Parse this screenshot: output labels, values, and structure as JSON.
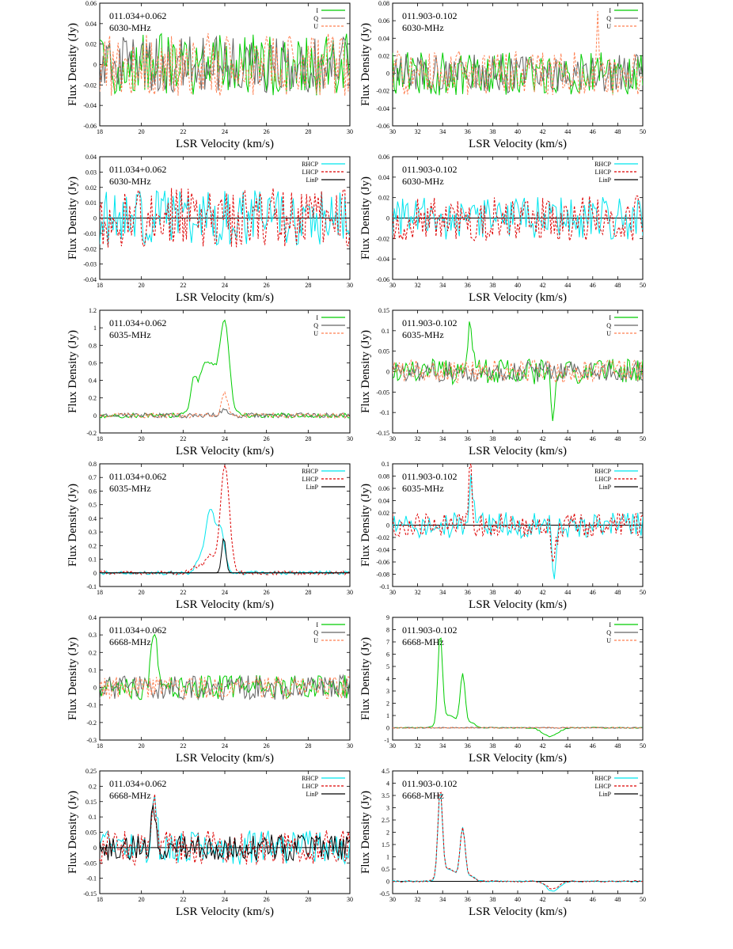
{
  "figure": {
    "layout": "6 rows x 2 columns grid of spectra panels"
  },
  "colors": {
    "I": "#00cc00",
    "Q": "#666666",
    "U": "#ff7f50",
    "RHCP": "#00e5ee",
    "LHCP": "#dd0000",
    "LinP": "#000000",
    "zero_line": "#000000"
  },
  "chart_data": [
    {
      "type": "line",
      "source": "011.034+0.062",
      "freq": "6030-MHz",
      "legend": [
        "I",
        "Q",
        "U"
      ],
      "xlabel": "LSR Velocity (km/s)",
      "ylabel": "Flux Density (Jy)",
      "xlim": [
        18,
        30
      ],
      "xticks": [
        18,
        20,
        22,
        24,
        26,
        28,
        30
      ],
      "ylim": [
        -0.06,
        0.06
      ],
      "yticks": [
        -0.06,
        -0.04,
        -0.02,
        0,
        0.02,
        0.04,
        0.06
      ],
      "grid": false,
      "legend_position": "top-right",
      "series": [
        {
          "name": "I",
          "noise": 0.022,
          "peaks": []
        },
        {
          "name": "Q",
          "noise": 0.02,
          "peaks": []
        },
        {
          "name": "U",
          "noise": 0.022,
          "peaks": []
        }
      ]
    },
    {
      "type": "line",
      "source": "011.903-0.102",
      "freq": "6030-MHz",
      "legend": [
        "I",
        "Q",
        "U"
      ],
      "xlabel": "LSR Velocity (km/s)",
      "ylabel": "Flux Density (Jy)",
      "xlim": [
        30,
        50
      ],
      "xticks": [
        30,
        32,
        34,
        36,
        38,
        40,
        42,
        44,
        46,
        48,
        50
      ],
      "ylim": [
        -0.06,
        0.08
      ],
      "yticks": [
        -0.06,
        -0.04,
        -0.02,
        0,
        0.02,
        0.04,
        0.06,
        0.08
      ],
      "grid": false,
      "legend_position": "top-right",
      "series": [
        {
          "name": "I",
          "noise": 0.018,
          "peaks": []
        },
        {
          "name": "Q",
          "noise": 0.016,
          "peaks": []
        },
        {
          "name": "U",
          "noise": 0.018,
          "peaks": [
            [
              46.4,
              0.05,
              0.08
            ]
          ]
        }
      ]
    },
    {
      "type": "line",
      "source": "011.034+0.062",
      "freq": "6030-MHz",
      "legend": [
        "RHCP",
        "LHCP",
        "LinP"
      ],
      "xlabel": "LSR Velocity (km/s)",
      "ylabel": "Flux Density (Jy)",
      "xlim": [
        18,
        30
      ],
      "xticks": [
        18,
        20,
        22,
        24,
        26,
        28,
        30
      ],
      "ylim": [
        -0.04,
        0.04
      ],
      "yticks": [
        -0.04,
        -0.03,
        -0.02,
        -0.01,
        0,
        0.01,
        0.02,
        0.03,
        0.04
      ],
      "grid": false,
      "legend_position": "top-right",
      "series": [
        {
          "name": "RHCP",
          "noise": 0.013,
          "peaks": []
        },
        {
          "name": "LHCP",
          "noise": 0.014,
          "peaks": []
        },
        {
          "name": "LinP",
          "noise": 0,
          "peaks": []
        }
      ]
    },
    {
      "type": "line",
      "source": "011.903-0.102",
      "freq": "6030-MHz",
      "legend": [
        "RHCP",
        "LHCP",
        "LinP"
      ],
      "xlabel": "LSR Velocity (km/s)",
      "ylabel": "Flux Density (Jy)",
      "xlim": [
        30,
        50
      ],
      "xticks": [
        30,
        32,
        34,
        36,
        38,
        40,
        42,
        44,
        46,
        48,
        50
      ],
      "ylim": [
        -0.06,
        0.06
      ],
      "yticks": [
        -0.06,
        -0.04,
        -0.02,
        0,
        0.02,
        0.04,
        0.06
      ],
      "grid": false,
      "legend_position": "top-right",
      "series": [
        {
          "name": "RHCP",
          "noise": 0.015,
          "peaks": []
        },
        {
          "name": "LHCP",
          "noise": 0.016,
          "peaks": []
        },
        {
          "name": "LinP",
          "noise": 0,
          "peaks": []
        }
      ]
    },
    {
      "type": "line",
      "source": "011.034+0.062",
      "freq": "6035-MHz",
      "legend": [
        "I",
        "Q",
        "U"
      ],
      "xlabel": "LSR Velocity (km/s)",
      "ylabel": "Flux Density (Jy)",
      "xlim": [
        18,
        30
      ],
      "xticks": [
        18,
        20,
        22,
        24,
        26,
        28,
        30
      ],
      "ylim": [
        -0.2,
        1.2
      ],
      "yticks": [
        -0.2,
        0,
        0.2,
        0.4,
        0.6,
        0.8,
        1,
        1.2
      ],
      "grid": false,
      "legend_position": "top-right",
      "series": [
        {
          "name": "I",
          "noise": 0.02,
          "peaks": [
            [
              22.5,
              0.25,
              0.12
            ],
            [
              23.2,
              0.62,
              0.45
            ],
            [
              24.0,
              0.95,
              0.22
            ]
          ]
        },
        {
          "name": "Q",
          "noise": 0.02,
          "peaks": [
            [
              24.0,
              0.08,
              0.15
            ]
          ]
        },
        {
          "name": "U",
          "noise": 0.02,
          "peaks": [
            [
              24.0,
              0.25,
              0.15
            ]
          ]
        }
      ]
    },
    {
      "type": "line",
      "source": "011.903-0.102",
      "freq": "6035-MHz",
      "legend": [
        "I",
        "Q",
        "U"
      ],
      "xlabel": "LSR Velocity (km/s)",
      "ylabel": "Flux Density (Jy)",
      "xlim": [
        30,
        50
      ],
      "xticks": [
        30,
        32,
        34,
        36,
        38,
        40,
        42,
        44,
        46,
        48,
        50
      ],
      "ylim": [
        -0.15,
        0.15
      ],
      "yticks": [
        -0.15,
        -0.1,
        -0.05,
        0,
        0.05,
        0.1,
        0.15
      ],
      "grid": false,
      "legend_position": "top-right",
      "series": [
        {
          "name": "I",
          "noise": 0.022,
          "peaks": [
            [
              36.2,
              0.1,
              0.2
            ],
            [
              42.8,
              -0.12,
              0.15
            ]
          ]
        },
        {
          "name": "Q",
          "noise": 0.018,
          "peaks": []
        },
        {
          "name": "U",
          "noise": 0.02,
          "peaks": []
        }
      ]
    },
    {
      "type": "line",
      "source": "011.034+0.062",
      "freq": "6035-MHz",
      "legend": [
        "RHCP",
        "LHCP",
        "LinP"
      ],
      "xlabel": "LSR Velocity (km/s)",
      "ylabel": "Flux Density (Jy)",
      "xlim": [
        18,
        30
      ],
      "xticks": [
        18,
        20,
        22,
        24,
        26,
        28,
        30
      ],
      "ylim": [
        -0.1,
        0.8
      ],
      "yticks": [
        -0.1,
        0,
        0.1,
        0.2,
        0.3,
        0.4,
        0.5,
        0.6,
        0.7,
        0.8
      ],
      "grid": false,
      "legend_position": "top-right",
      "series": [
        {
          "name": "RHCP",
          "noise": 0.01,
          "peaks": [
            [
              22.8,
              0.1,
              0.2
            ],
            [
              23.3,
              0.45,
              0.22
            ],
            [
              23.8,
              0.3,
              0.2
            ]
          ]
        },
        {
          "name": "LHCP",
          "noise": 0.01,
          "peaks": [
            [
              22.7,
              0.05,
              0.3
            ],
            [
              23.3,
              0.12,
              0.2
            ],
            [
              24.0,
              0.78,
              0.22
            ]
          ]
        },
        {
          "name": "LinP",
          "noise": 0,
          "peaks": [
            [
              23.95,
              0.26,
              0.1
            ]
          ]
        }
      ]
    },
    {
      "type": "line",
      "source": "011.903-0.102",
      "freq": "6035-MHz",
      "legend": [
        "RHCP",
        "LHCP",
        "LinP"
      ],
      "xlabel": "LSR Velocity (km/s)",
      "ylabel": "Flux Density (Jy)",
      "xlim": [
        30,
        50
      ],
      "xticks": [
        30,
        32,
        34,
        36,
        38,
        40,
        42,
        44,
        46,
        48,
        50
      ],
      "ylim": [
        -0.1,
        0.1
      ],
      "yticks": [
        -0.1,
        -0.08,
        -0.06,
        -0.04,
        -0.02,
        0,
        0.02,
        0.04,
        0.06,
        0.08,
        0.1
      ],
      "grid": false,
      "legend_position": "top-right",
      "series": [
        {
          "name": "RHCP",
          "noise": 0.015,
          "peaks": [
            [
              36.3,
              0.08,
              0.15
            ],
            [
              42.9,
              -0.07,
              0.15
            ]
          ]
        },
        {
          "name": "LHCP",
          "noise": 0.014,
          "peaks": [
            [
              36.2,
              0.09,
              0.15
            ],
            [
              42.9,
              -0.05,
              0.2
            ]
          ]
        },
        {
          "name": "LinP",
          "noise": 0,
          "peaks": []
        }
      ]
    },
    {
      "type": "line",
      "source": "011.034+0.062",
      "freq": "6668-MHz",
      "legend": [
        "I",
        "Q",
        "U"
      ],
      "xlabel": "LSR Velocity (km/s)",
      "ylabel": "Flux Density (Jy)",
      "xlim": [
        18,
        30
      ],
      "xticks": [
        18,
        20,
        22,
        24,
        26,
        28,
        30
      ],
      "ylim": [
        -0.3,
        0.4
      ],
      "yticks": [
        -0.3,
        -0.2,
        -0.1,
        0,
        0.1,
        0.2,
        0.3,
        0.4
      ],
      "grid": false,
      "legend_position": "top-right",
      "series": [
        {
          "name": "I",
          "noise": 0.05,
          "peaks": [
            [
              20.6,
              0.32,
              0.15
            ]
          ]
        },
        {
          "name": "Q",
          "noise": 0.05,
          "peaks": []
        },
        {
          "name": "U",
          "noise": 0.045,
          "peaks": []
        }
      ]
    },
    {
      "type": "line",
      "source": "011.903-0.102",
      "freq": "6668-MHz",
      "legend": [
        "I",
        "Q",
        "U"
      ],
      "xlabel": "LSR Velocity (km/s)",
      "ylabel": "Flux Density (Jy)",
      "xlim": [
        30,
        50
      ],
      "xticks": [
        30,
        32,
        34,
        36,
        38,
        40,
        42,
        44,
        46,
        48,
        50
      ],
      "ylim": [
        -1,
        9
      ],
      "yticks": [
        -1,
        0,
        1,
        2,
        3,
        4,
        5,
        6,
        7,
        8,
        9
      ],
      "grid": false,
      "legend_position": "top-right",
      "series": [
        {
          "name": "I",
          "noise": 0.03,
          "peaks": [
            [
              33.8,
              7.2,
              0.18
            ],
            [
              34.5,
              1.0,
              0.6
            ],
            [
              35.6,
              4.2,
              0.2
            ],
            [
              36.3,
              0.4,
              0.3
            ],
            [
              42.6,
              -0.7,
              0.6
            ]
          ]
        },
        {
          "name": "Q",
          "noise": 0.03,
          "peaks": []
        },
        {
          "name": "U",
          "noise": 0.03,
          "peaks": []
        }
      ]
    },
    {
      "type": "line",
      "source": "011.034+0.062",
      "freq": "6668-MHz",
      "legend": [
        "RHCP",
        "LHCP",
        "LinP"
      ],
      "xlabel": "LSR Velocity (km/s)",
      "ylabel": "Flux Density (Jy)",
      "xlim": [
        18,
        30
      ],
      "xticks": [
        18,
        20,
        22,
        24,
        26,
        28,
        30
      ],
      "ylim": [
        -0.15,
        0.25
      ],
      "yticks": [
        -0.15,
        -0.1,
        -0.05,
        0,
        0.05,
        0.1,
        0.15,
        0.2,
        0.25
      ],
      "grid": false,
      "legend_position": "top-right",
      "series": [
        {
          "name": "RHCP",
          "noise": 0.04,
          "peaks": [
            [
              20.6,
              0.18,
              0.12
            ]
          ]
        },
        {
          "name": "LHCP",
          "noise": 0.04,
          "peaks": [
            [
              20.6,
              0.2,
              0.12
            ]
          ]
        },
        {
          "name": "LinP",
          "noise": 0.03,
          "peaks": [
            [
              20.6,
              0.12,
              0.12
            ]
          ]
        }
      ]
    },
    {
      "type": "line",
      "source": "011.903-0.102",
      "freq": "6668-MHz",
      "legend": [
        "RHCP",
        "LHCP",
        "LinP"
      ],
      "xlabel": "LSR Velocity (km/s)",
      "ylabel": "Flux Density (Jy)",
      "xlim": [
        30,
        50
      ],
      "xticks": [
        30,
        32,
        34,
        36,
        38,
        40,
        42,
        44,
        46,
        48,
        50
      ],
      "ylim": [
        -0.5,
        4.5
      ],
      "yticks": [
        -0.5,
        0,
        0.5,
        1,
        1.5,
        2,
        2.5,
        3,
        3.5,
        4,
        4.5
      ],
      "grid": false,
      "legend_position": "top-right",
      "series": [
        {
          "name": "RHCP",
          "noise": 0.02,
          "peaks": [
            [
              33.8,
              3.5,
              0.18
            ],
            [
              34.5,
              0.5,
              0.6
            ],
            [
              35.6,
              2.1,
              0.2
            ],
            [
              36.3,
              0.2,
              0.3
            ],
            [
              42.8,
              -0.4,
              0.5
            ]
          ]
        },
        {
          "name": "LHCP",
          "noise": 0.02,
          "peaks": [
            [
              33.8,
              3.6,
              0.18
            ],
            [
              34.5,
              0.5,
              0.6
            ],
            [
              35.6,
              2.1,
              0.2
            ],
            [
              36.3,
              0.2,
              0.3
            ],
            [
              42.8,
              -0.3,
              0.5
            ]
          ]
        },
        {
          "name": "LinP",
          "noise": 0,
          "peaks": []
        }
      ]
    }
  ]
}
